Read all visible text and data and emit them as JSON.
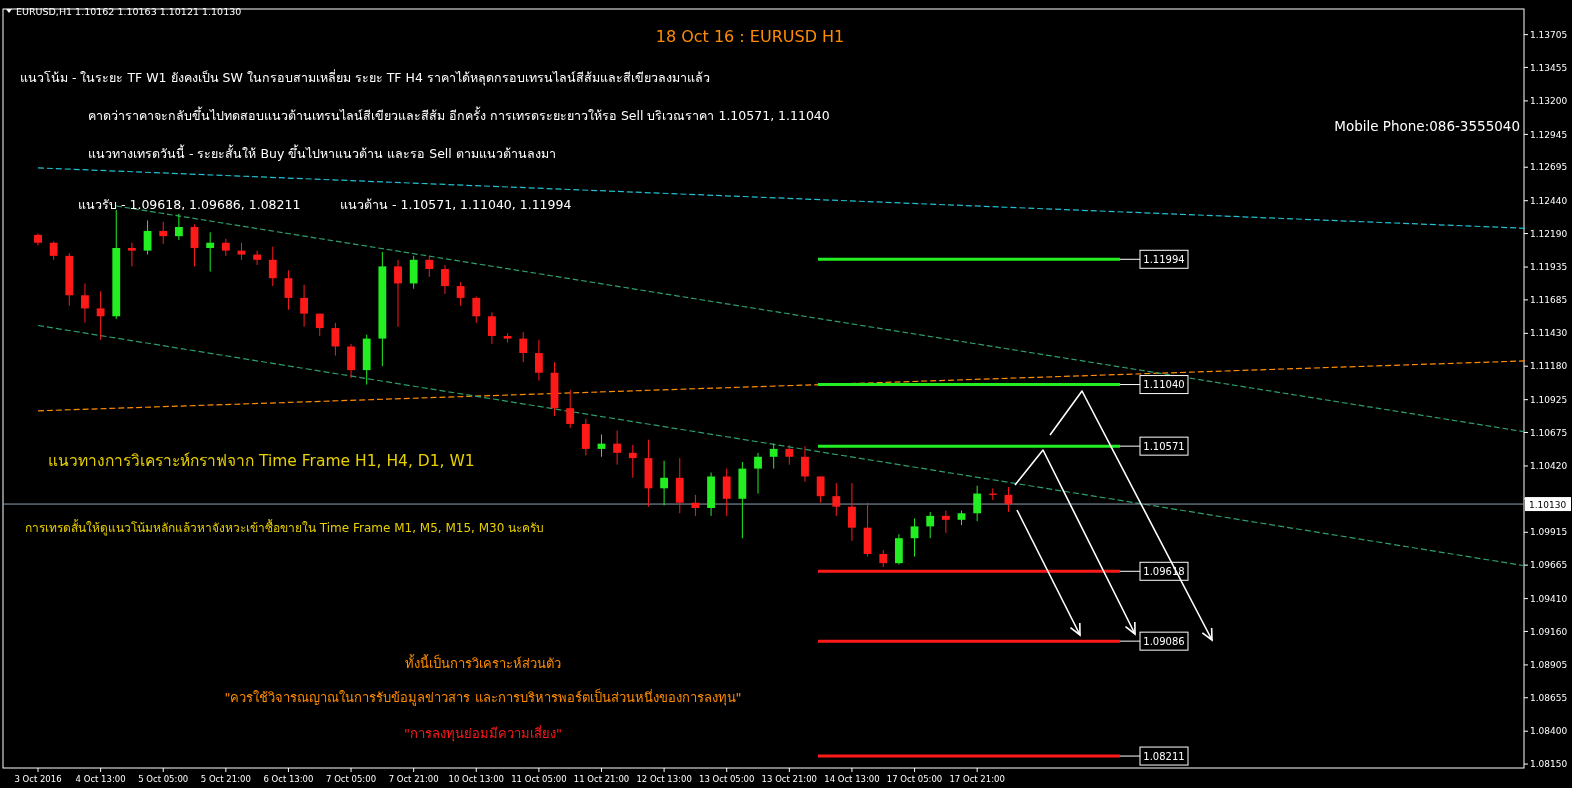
{
  "chart_data": {
    "type": "candlestick",
    "title": "18 Oct 16 : EURUSD H1",
    "subtitle": "EURUSD,H1  1.10162 1.10163 1.10121 1.10130",
    "categories": [
      "3 Oct 2016",
      null,
      null,
      null,
      "4 Oct 13:00",
      null,
      null,
      null,
      "5 Oct 05:00",
      null,
      null,
      null,
      "5 Oct 21:00",
      null,
      null,
      null,
      "6 Oct 13:00",
      null,
      null,
      null,
      "7 Oct 05:00",
      null,
      null,
      null,
      "7 Oct 21:00",
      null,
      null,
      null,
      "10 Oct 13:00",
      null,
      null,
      null,
      "11 Oct 05:00",
      null,
      null,
      null,
      "11 Oct 21:00",
      null,
      null,
      null,
      "12 Oct 13:00",
      null,
      null,
      null,
      "13 Oct 05:00",
      null,
      null,
      null,
      "13 Oct 21:00",
      null,
      null,
      null,
      "14 Oct 13:00",
      null,
      null,
      null,
      "17 Oct 05:00",
      null,
      null,
      null,
      "17 Oct 21:00",
      null,
      null,
      null,
      null,
      null,
      null,
      null,
      null,
      null,
      null,
      null,
      null,
      null,
      null,
      null,
      null,
      null,
      null,
      null,
      null,
      null,
      null,
      null,
      null,
      null,
      null,
      null,
      null,
      null,
      null,
      null,
      null,
      null,
      null,
      null
    ],
    "ohlc": [
      [
        1.1218,
        1.1219,
        1.121,
        1.1212
      ],
      [
        1.1212,
        1.1213,
        1.1199,
        1.1202
      ],
      [
        1.1202,
        1.1204,
        1.1164,
        1.1172
      ],
      [
        1.1172,
        1.1181,
        1.1151,
        1.1162
      ],
      [
        1.1162,
        1.1175,
        1.1138,
        1.1156
      ],
      [
        1.1156,
        1.1237,
        1.1154,
        1.1208
      ],
      [
        1.1208,
        1.1212,
        1.1194,
        1.1206
      ],
      [
        1.1206,
        1.1229,
        1.1203,
        1.1221
      ],
      [
        1.1221,
        1.1228,
        1.1211,
        1.1217
      ],
      [
        1.1217,
        1.1234,
        1.1214,
        1.1224
      ],
      [
        1.1224,
        1.1226,
        1.1194,
        1.1208
      ],
      [
        1.1208,
        1.122,
        1.119,
        1.1212
      ],
      [
        1.1212,
        1.1215,
        1.1202,
        1.1206
      ],
      [
        1.1206,
        1.1212,
        1.1199,
        1.1203
      ],
      [
        1.1203,
        1.1206,
        1.1195,
        1.1199
      ],
      [
        1.1199,
        1.1209,
        1.1179,
        1.1185
      ],
      [
        1.1185,
        1.1191,
        1.1161,
        1.117
      ],
      [
        1.117,
        1.118,
        1.1148,
        1.1158
      ],
      [
        1.1158,
        1.1158,
        1.1141,
        1.1147
      ],
      [
        1.1147,
        1.1151,
        1.1126,
        1.1133
      ],
      [
        1.1133,
        1.1135,
        1.1109,
        1.1115
      ],
      [
        1.1115,
        1.1142,
        1.1104,
        1.1139
      ],
      [
        1.1139,
        1.1205,
        1.1118,
        1.1194
      ],
      [
        1.1194,
        1.1199,
        1.1148,
        1.1181
      ],
      [
        1.1181,
        1.1202,
        1.1177,
        1.1199
      ],
      [
        1.1199,
        1.1202,
        1.1186,
        1.1192
      ],
      [
        1.1192,
        1.1195,
        1.1173,
        1.1179
      ],
      [
        1.1179,
        1.1182,
        1.1164,
        1.117
      ],
      [
        1.117,
        1.1171,
        1.1151,
        1.1156
      ],
      [
        1.1156,
        1.1159,
        1.1135,
        1.1141
      ],
      [
        1.1141,
        1.1143,
        1.1136,
        1.1139
      ],
      [
        1.1139,
        1.1144,
        1.1121,
        1.1128
      ],
      [
        1.1128,
        1.1138,
        1.1107,
        1.1113
      ],
      [
        1.1113,
        1.1121,
        1.108,
        1.1086
      ],
      [
        1.1086,
        1.11,
        1.1071,
        1.1074
      ],
      [
        1.1074,
        1.1078,
        1.105,
        1.1055
      ],
      [
        1.1055,
        1.1066,
        1.1049,
        1.1059
      ],
      [
        1.1059,
        1.1069,
        1.1043,
        1.1052
      ],
      [
        1.1052,
        1.1058,
        1.1033,
        1.1048
      ],
      [
        1.1048,
        1.1062,
        1.1011,
        1.1025
      ],
      [
        1.1025,
        1.1046,
        1.1012,
        1.1033
      ],
      [
        1.1033,
        1.1048,
        1.1006,
        1.1014
      ],
      [
        1.1014,
        1.102,
        1.1004,
        1.101
      ],
      [
        1.101,
        1.1037,
        1.1004,
        1.1034
      ],
      [
        1.1034,
        1.104,
        1.1004,
        1.1017
      ],
      [
        1.1017,
        1.1045,
        1.0987,
        1.104
      ],
      [
        1.104,
        1.1052,
        1.1021,
        1.1049
      ],
      [
        1.1049,
        1.1059,
        1.104,
        1.1055
      ],
      [
        1.1055,
        1.1058,
        1.1043,
        1.1049
      ],
      [
        1.1049,
        1.1057,
        1.103,
        1.1034
      ],
      [
        1.1034,
        1.1034,
        1.1014,
        1.1019
      ],
      [
        1.1019,
        1.1029,
        1.1004,
        1.1011
      ],
      [
        1.1011,
        1.1029,
        1.0985,
        1.0995
      ],
      [
        1.0995,
        1.1014,
        1.0973,
        1.0975
      ],
      [
        1.0975,
        1.0978,
        1.0965,
        1.0968
      ],
      [
        1.0968,
        1.099,
        1.0967,
        1.0987
      ],
      [
        1.0987,
        1.1002,
        1.0973,
        1.0996
      ],
      [
        1.0996,
        1.1007,
        1.0987,
        1.1004
      ],
      [
        1.1004,
        1.1008,
        1.0991,
        1.1001
      ],
      [
        1.1001,
        1.1008,
        1.0997,
        1.1006
      ],
      [
        1.1006,
        1.1027,
        1.1,
        1.1021
      ],
      [
        1.1021,
        1.1025,
        1.1016,
        1.102
      ],
      [
        1.102,
        1.1026,
        1.1007,
        1.1013
      ],
      null,
      null,
      null,
      null,
      null,
      null,
      null,
      null,
      null,
      null,
      null,
      null,
      null,
      null,
      null,
      null,
      null,
      null,
      null,
      null,
      null,
      null,
      null,
      null,
      null,
      null,
      null,
      null,
      null,
      null,
      null,
      null,
      null
    ],
    "series": [
      {
        "type": "line",
        "color": "#20c0d0",
        "line_style": "dashed",
        "values": [
          1.1269,
          null,
          null,
          null,
          null,
          null,
          null,
          null,
          null,
          null,
          null,
          null,
          null,
          null,
          null,
          null,
          null,
          null,
          null,
          null,
          null,
          null,
          null,
          null,
          null,
          null,
          null,
          null,
          null,
          null,
          null,
          null,
          null,
          null,
          null,
          null,
          null,
          null,
          null,
          null,
          null,
          null,
          null,
          null,
          null,
          null,
          null,
          null,
          null,
          null,
          null,
          null,
          null,
          null,
          null,
          null,
          null,
          null,
          null,
          null,
          null,
          null,
          null,
          null,
          null,
          null,
          null,
          null,
          null,
          null,
          null,
          null,
          null,
          null,
          null,
          null,
          null,
          null,
          null,
          null,
          null,
          null,
          null,
          null,
          null,
          null,
          null,
          null,
          null,
          null,
          null,
          null,
          null,
          null,
          null,
          1.1223
        ]
      },
      {
        "type": "line",
        "color": "#ff8c00",
        "line_style": "dashed",
        "values": [
          1.1084,
          null,
          null,
          null,
          null,
          null,
          null,
          null,
          null,
          null,
          null,
          null,
          null,
          null,
          null,
          null,
          null,
          null,
          null,
          null,
          null,
          null,
          null,
          null,
          null,
          null,
          null,
          null,
          null,
          null,
          null,
          null,
          null,
          null,
          null,
          null,
          null,
          null,
          null,
          null,
          null,
          null,
          null,
          null,
          null,
          null,
          null,
          null,
          null,
          null,
          null,
          null,
          null,
          null,
          null,
          null,
          null,
          null,
          null,
          null,
          null,
          null,
          null,
          null,
          null,
          null,
          null,
          null,
          null,
          null,
          null,
          null,
          null,
          null,
          null,
          null,
          null,
          null,
          null,
          null,
          null,
          null,
          null,
          null,
          null,
          null,
          null,
          null,
          null,
          null,
          null,
          null,
          null,
          null,
          null,
          1.1122
        ]
      },
      {
        "type": "line",
        "color": "#2e9e6a",
        "line_style": "dashed",
        "values": [
          null,
          null,
          null,
          null,
          null,
          1.124,
          null,
          null,
          null,
          null,
          null,
          null,
          null,
          null,
          null,
          null,
          null,
          null,
          null,
          null,
          null,
          null,
          null,
          null,
          null,
          null,
          null,
          null,
          null,
          null,
          null,
          null,
          null,
          null,
          null,
          null,
          null,
          null,
          null,
          null,
          null,
          null,
          null,
          null,
          null,
          null,
          null,
          null,
          null,
          null,
          null,
          null,
          null,
          null,
          null,
          null,
          null,
          null,
          null,
          null,
          null,
          null,
          null,
          null,
          null,
          null,
          null,
          null,
          null,
          null,
          null,
          null,
          null,
          null,
          null,
          null,
          null,
          null,
          null,
          null,
          null,
          null,
          null,
          null,
          null,
          null,
          null,
          null,
          null,
          null,
          null,
          null,
          null,
          null,
          null,
          1.1068
        ]
      },
      {
        "type": "line",
        "color": "#2e9e6a",
        "line_style": "dashed",
        "values": [
          1.1149,
          null,
          null,
          null,
          null,
          null,
          null,
          null,
          null,
          null,
          null,
          null,
          null,
          null,
          null,
          null,
          null,
          null,
          null,
          null,
          null,
          null,
          null,
          null,
          null,
          null,
          null,
          null,
          null,
          null,
          null,
          null,
          null,
          null,
          null,
          null,
          null,
          null,
          null,
          null,
          null,
          null,
          null,
          null,
          null,
          null,
          null,
          null,
          null,
          null,
          null,
          null,
          null,
          null,
          null,
          null,
          null,
          null,
          null,
          null,
          null,
          null,
          null,
          null,
          null,
          null,
          null,
          null,
          null,
          null,
          null,
          null,
          null,
          null,
          null,
          null,
          null,
          null,
          null,
          null,
          null,
          null,
          null,
          null,
          null,
          null,
          null,
          null,
          null,
          null,
          null,
          null,
          null,
          null,
          null,
          1.0966
        ]
      }
    ],
    "ylim": [
      1.0812,
      1.139
    ],
    "yticks": [
      1.13705,
      1.13455,
      {
        "value": 1.132,
        "label": "1.13200"
      },
      1.12945,
      1.12695,
      {
        "value": 1.1244,
        "label": "1.12440"
      },
      {
        "value": 1.1219,
        "label": "1.12190"
      },
      1.11935,
      1.11685,
      {
        "value": 1.1143,
        "label": "1.11430"
      },
      {
        "value": 1.1118,
        "label": "1.11180"
      },
      1.10925,
      1.10675,
      {
        "value": 1.1042,
        "label": "1.10420"
      },
      {
        "value": 1.1017,
        "label": null
      },
      1.09915,
      1.09665,
      {
        "value": 1.0941,
        "label": "1.09410"
      },
      {
        "value": 1.0916,
        "label": "1.09160"
      },
      1.08905,
      1.08655,
      {
        "value": 1.084,
        "label": "1.08400"
      },
      {
        "value": 1.0815,
        "label": "1.08150"
      }
    ],
    "ref_lines": [
      {
        "axis": "y",
        "value": 1.1013,
        "label": "1.10130",
        "color": "#8fa0b0"
      },
      {
        "axis": "y",
        "value": 1.11994,
        "label": "1.11994",
        "color": "#22ee22"
      },
      {
        "axis": "y",
        "value": 1.1104,
        "label": "1.11040",
        "color": "#22ee22"
      },
      {
        "axis": "y",
        "value": 1.10571,
        "label": "1.10571",
        "color": "#22ee22"
      },
      {
        "axis": "y",
        "value": 1.09618,
        "label": "1.09618",
        "color": "#ff1a1a"
      },
      {
        "axis": "y",
        "value": 1.09086,
        "label": "1.09086",
        "color": "#ff1a1a"
      },
      {
        "axis": "y",
        "value": 1.08211,
        "label": "1.08211",
        "color": "#ff1a1a"
      }
    ],
    "annotations": [
      "แนวโน้ม - ในระยะ TF W1 ยังคงเป็น SW ในกรอบสามเหลี่ยม  ระยะ TF H4 ราคาได้หลุดกรอบเทรนไลน์สีส้มและสีเขียวลงมาแล้ว",
      "คาดว่าราคาจะกลับขึ้นไปทดสอบแนวต้านเทรนไลน์สีเขียวและสีส้ม อีกครั้ง การเทรดระยะยาวให้รอ Sell บริเวณราคา 1.10571, 1.11040",
      "แนวทางเทรดวันนี้ - ระยะสั้นให้ Buy ขึ้นไปหาแนวต้าน  และรอ Sell ตามแนวต้านลงมา",
      "แนวรับ - 1.09618, 1.09686, 1.08211",
      "แนวต้าน - 1.10571, 1.11040, 1.11994",
      "แนวทางการวิเคราะห์กราฟจาก Time Frame H1, H4, D1, W1",
      "การเทรดสั้นให้ดูแนวโน้มหลักแล้วหาจังหวะเข้าซื้อขายใน Time Frame  M1, M5, M15, M30 นะครับ",
      "ทั้งนี้เป็นการวิเคราะห์ส่วนตัว",
      "\"ควรใช้วิจารณญาณในการรับข้อมูลข่าวสาร และการบริหารพอร์ตเป็นส่วนหนึ่งของการลงทุน\"",
      "\"การลงทุนย่อมมีความเสี่ยง\"",
      "Mobile Phone:086-3555040"
    ]
  }
}
